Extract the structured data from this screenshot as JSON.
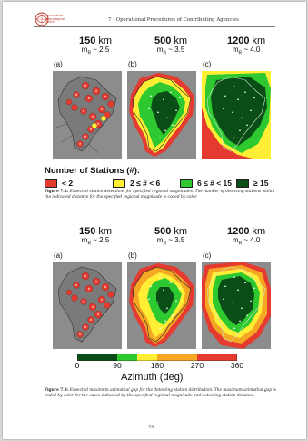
{
  "header": {
    "org_lines": [
      "International",
      "Seismological",
      "Centre"
    ],
    "title": "7 - Operational Procedures of Contributing Agencies"
  },
  "figure_top": {
    "panels": [
      {
        "label": "(a)",
        "distance": "150",
        "unit": "km",
        "magnitude": "m",
        "magnitude_sub": "R",
        "magnitude_rest": " ~ 2.5"
      },
      {
        "label": "(b)",
        "distance": "500",
        "unit": "km",
        "magnitude": "m",
        "magnitude_sub": "R",
        "magnitude_rest": " ~ 3.5"
      },
      {
        "label": "(c)",
        "distance": "1200",
        "unit": "km",
        "magnitude": "m",
        "magnitude_sub": "R",
        "magnitude_rest": " ~ 4.0"
      }
    ],
    "legend_title": "Number of Stations (#):",
    "legend": [
      {
        "label": "< 2",
        "color": "#e53a2f"
      },
      {
        "label": "2 ≤ # < 6",
        "color": "#ffee33"
      },
      {
        "label": "6 ≤ # < 15",
        "color": "#2ec830"
      },
      {
        "label": "≥ 15",
        "color": "#0a4d16"
      }
    ],
    "caption_label": "Figure 7.2:",
    "caption_text": " Expected station detections for specified regional magnitudes. The number of detecting stations within the indicated distance for the specified regional magnitude is coded by color."
  },
  "figure_bottom": {
    "panels": [
      {
        "label": "(a)",
        "distance": "150",
        "unit": "km",
        "magnitude": "m",
        "magnitude_sub": "R",
        "magnitude_rest": " ~ 2.5"
      },
      {
        "label": "(b)",
        "distance": "500",
        "unit": "km",
        "magnitude": "m",
        "magnitude_sub": "R",
        "magnitude_rest": " ~ 3.5"
      },
      {
        "label": "(c)",
        "distance": "1200",
        "unit": "km",
        "magnitude": "m",
        "magnitude_sub": "R",
        "magnitude_rest": " ~ 4.0"
      }
    ],
    "colorbar": {
      "ticks": [
        "0",
        "90",
        "180",
        "270",
        "360"
      ],
      "colors": [
        "#0a4d16",
        "#2ec830",
        "#ffee33",
        "#f5a623",
        "#e53a2f"
      ],
      "label": "Azimuth (deg)"
    },
    "caption_label": "Figure 7.3:",
    "caption_text": " Expected maximum azimuthal gap for the detecting station distribution. The maximum azimuthal gap is coded by color for the cases indicated by the specified regional magnitude and detecting station distance."
  },
  "page_number": "79"
}
